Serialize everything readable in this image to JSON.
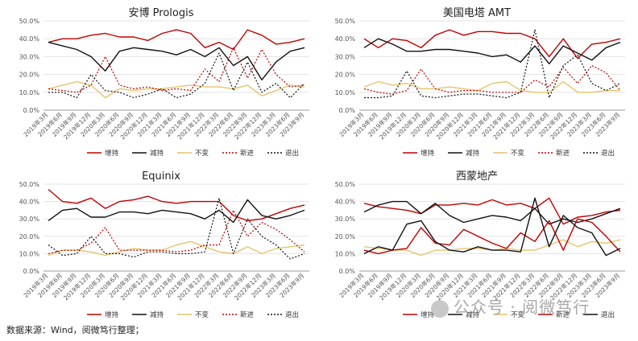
{
  "source_note": "数据来源：Wind，阅微笃行整理；",
  "watermark": "公众号 · 阅微笃行",
  "chart_data": [
    {
      "type": "line",
      "title": "安博 Prologis",
      "ylim": [
        0,
        50
      ],
      "yticks": [
        "0.0%",
        "10.0%",
        "20.0%",
        "30.0%",
        "40.0%",
        "50.0%"
      ],
      "categories": [
        "2019年3月",
        "2019年6月",
        "2019年9月",
        "2019年12月",
        "2020年3月",
        "2020年6月",
        "2020年9月",
        "2020年12月",
        "2021年3月",
        "2021年6月",
        "2021年9月",
        "2021年12月",
        "2022年3月",
        "2022年6月",
        "2022年9月",
        "2022年12月",
        "2023年3月",
        "2023年6月",
        "2023年9月"
      ],
      "tick_labels": [
        "2019年3月",
        "2019年6月",
        "2019年9月",
        "2019年12月",
        "2020年3月",
        "2020年6月",
        "2020年9月",
        "2020年12月",
        "2021年3月",
        "2021年6月",
        "2021年9月",
        "2021年12月",
        "2022年3月",
        "2022年6月",
        "2022年9月",
        "2022年12月",
        "2023年3月",
        "2023年6月",
        "2023年9月"
      ],
      "series": [
        {
          "name": "增持",
          "color": "#c00000",
          "dash": "solid",
          "values": [
            38,
            40,
            40,
            42,
            43,
            41,
            41,
            39,
            43,
            45,
            43,
            35,
            38,
            34,
            45,
            42,
            37,
            38,
            40
          ]
        },
        {
          "name": "减持",
          "color": "#111111",
          "dash": "solid",
          "values": [
            38,
            36,
            34,
            30,
            22,
            33,
            35,
            34,
            33,
            31,
            34,
            30,
            35,
            25,
            30,
            17,
            27,
            33,
            35
          ]
        },
        {
          "name": "不变",
          "color": "#e6c46a",
          "dash": "solid",
          "values": [
            12,
            14,
            16,
            14,
            7,
            12,
            11,
            12,
            12,
            13,
            14,
            13,
            13,
            12,
            14,
            8,
            11,
            14,
            13
          ]
        },
        {
          "name": "新进",
          "color": "#c00000",
          "dash": "dot",
          "values": [
            12,
            11,
            10,
            14,
            30,
            14,
            12,
            13,
            11,
            12,
            11,
            23,
            16,
            35,
            18,
            34,
            20,
            13,
            14
          ]
        },
        {
          "name": "退出",
          "color": "#111111",
          "dash": "dot",
          "values": [
            10,
            10,
            7,
            20,
            11,
            10,
            7,
            9,
            12,
            7,
            9,
            15,
            32,
            11,
            27,
            10,
            15,
            7,
            15
          ]
        }
      ]
    },
    {
      "type": "line",
      "title": "美国电塔 AMT",
      "ylim": [
        0,
        50
      ],
      "yticks": [
        "0.0%",
        "10.0%",
        "20.0%",
        "30.0%",
        "40.0%",
        "50.0%"
      ],
      "categories": [
        "2019年3月",
        "2019年6月",
        "2019年9月",
        "2019年12月",
        "2020年3月",
        "2020年6月",
        "2020年9月",
        "2020年12月",
        "2021年3月",
        "2021年6月",
        "2021年9月",
        "2021年12月",
        "2022年3月",
        "2022年6月",
        "2022年9月",
        "2022年12月",
        "2023年3月",
        "2023年6月",
        "2023年9月"
      ],
      "tick_labels": [
        "2019年3月",
        "2019年6月",
        "2019年9月",
        "2019年12月",
        "2020年3月",
        "2020年6月",
        "2020年9月",
        "2020年12月",
        "2021年3月",
        "2021年6月",
        "2021年9月",
        "2021年12月",
        "2022年3月",
        "2022年6月",
        "2022年9月",
        "2022年12月",
        "2023年3月",
        "2023年6月",
        "2023年9月"
      ],
      "series": [
        {
          "name": "增持",
          "color": "#c00000",
          "dash": "solid",
          "values": [
            40,
            35,
            40,
            39,
            35,
            42,
            45,
            42,
            44,
            44,
            43,
            43,
            40,
            30,
            40,
            29,
            37,
            38,
            40
          ]
        },
        {
          "name": "减持",
          "color": "#111111",
          "dash": "solid",
          "values": [
            35,
            40,
            37,
            33,
            33,
            34,
            34,
            33,
            32,
            30,
            31,
            27,
            36,
            26,
            36,
            32,
            28,
            35,
            38
          ]
        },
        {
          "name": "不变",
          "color": "#e6c46a",
          "dash": "solid",
          "values": [
            13,
            16,
            14,
            15,
            12,
            12,
            13,
            12,
            11,
            15,
            16,
            11,
            10,
            10,
            16,
            10,
            10,
            11,
            11
          ]
        },
        {
          "name": "新进",
          "color": "#c00000",
          "dash": "dot",
          "values": [
            12,
            10,
            9,
            11,
            23,
            12,
            10,
            11,
            11,
            10,
            10,
            10,
            17,
            13,
            24,
            15,
            25,
            21,
            11
          ]
        },
        {
          "name": "退出",
          "color": "#111111",
          "dash": "dot",
          "values": [
            7,
            7,
            8,
            22,
            8,
            7,
            8,
            9,
            9,
            8,
            7,
            10,
            45,
            7,
            25,
            31,
            15,
            11,
            15
          ]
        }
      ]
    },
    {
      "type": "line",
      "title": "Equinix",
      "ylim": [
        0,
        50
      ],
      "yticks": [
        "0.0%",
        "10.0%",
        "20.0%",
        "30.0%",
        "40.0%",
        "50.0%"
      ],
      "categories": [
        "2019年3月",
        "2019年6月",
        "2019年9月",
        "2019年12月",
        "2020年3月",
        "2020年6月",
        "2020年9月",
        "2020年12月",
        "2021年3月",
        "2021年6月",
        "2021年9月",
        "2021年12月",
        "2022年3月",
        "2022年6月",
        "2022年9月",
        "2022年12月",
        "2023年3月",
        "2023年6月",
        "2023年9月"
      ],
      "tick_labels": [
        "2019年3月",
        "2019年6月",
        "2019年9月",
        "2019年12月",
        "2020年3月",
        "2020年6月",
        "2020年9月",
        "2020年12月",
        "2021年3月",
        "2021年6月",
        "2021年9月",
        "2021年12月",
        "2022年3月",
        "2022年6月",
        "2022年9月",
        "2022年12月",
        "2023年3月",
        "2023年6月",
        "2023年9月"
      ],
      "series": [
        {
          "name": "增持",
          "color": "#c00000",
          "dash": "solid",
          "values": [
            47,
            40,
            39,
            42,
            36,
            40,
            41,
            43,
            40,
            39,
            40,
            40,
            40,
            32,
            29,
            30,
            33,
            36,
            38
          ]
        },
        {
          "name": "减持",
          "color": "#111111",
          "dash": "solid",
          "values": [
            29,
            35,
            36,
            31,
            31,
            34,
            34,
            33,
            35,
            34,
            33,
            30,
            35,
            28,
            41,
            32,
            30,
            32,
            35
          ]
        },
        {
          "name": "不变",
          "color": "#e6c46a",
          "dash": "solid",
          "values": [
            9,
            12,
            12,
            11,
            9,
            11,
            13,
            12,
            12,
            15,
            17,
            14,
            11,
            10,
            14,
            10,
            13,
            14,
            15
          ]
        },
        {
          "name": "新进",
          "color": "#c00000",
          "dash": "dot",
          "values": [
            10,
            12,
            12,
            16,
            25,
            12,
            12,
            12,
            12,
            11,
            12,
            15,
            15,
            35,
            20,
            28,
            24,
            18,
            11
          ]
        },
        {
          "name": "退出",
          "color": "#111111",
          "dash": "dot",
          "values": [
            15,
            9,
            10,
            20,
            10,
            10,
            8,
            11,
            11,
            10,
            10,
            11,
            42,
            10,
            30,
            20,
            15,
            7,
            10
          ]
        }
      ]
    },
    {
      "type": "line",
      "title": "西蒙地产",
      "ylim": [
        0,
        50
      ],
      "yticks": [
        "0.0%",
        "10.0%",
        "20.0%",
        "30.0%",
        "40.0%",
        "50.0%"
      ],
      "categories": [
        "2019年3月",
        "2019年6月",
        "2019年9月",
        "2019年12月",
        "2020年3月",
        "2020年6月",
        "2020年9月",
        "2020年12月",
        "2021年3月",
        "2021年6月",
        "2021年9月",
        "2021年12月",
        "2022年3月",
        "2022年6月",
        "2022年9月",
        "2022年12月",
        "2023年3月",
        "2023年6月",
        "2023年9月"
      ],
      "tick_labels": [
        "2019年3月",
        "2019年6月",
        "2019年9月",
        "2019年12月",
        "2020年3月",
        "2020年6月",
        "2020年9月",
        "2020年12月",
        "2021年3月",
        "2021年6月",
        "2021年9月",
        "2021年12月",
        "2022年3月",
        "2022年6月",
        "2022年9月",
        "2022年12月",
        "2023年3月",
        "2023年6月",
        "2023年9月"
      ],
      "series": [
        {
          "name": "增持",
          "color": "#c00000",
          "dash": "solid",
          "values": [
            39,
            37,
            36,
            35,
            33,
            38,
            38,
            39,
            38,
            41,
            38,
            39,
            36,
            42,
            27,
            31,
            32,
            34,
            35
          ]
        },
        {
          "name": "减持",
          "color": "#111111",
          "dash": "solid",
          "values": [
            34,
            38,
            40,
            40,
            33,
            39,
            32,
            28,
            30,
            32,
            31,
            29,
            36,
            27,
            30,
            28,
            30,
            33,
            36
          ]
        },
        {
          "name": "不变",
          "color": "#e6c46a",
          "dash": "solid",
          "values": [
            14,
            13,
            12,
            12,
            9,
            12,
            12,
            13,
            13,
            12,
            13,
            12,
            12,
            15,
            18,
            14,
            17,
            16,
            18
          ]
        },
        {
          "name": "新进",
          "color": "#c00000",
          "dash": "solid",
          "values": [
            12,
            10,
            12,
            13,
            25,
            16,
            15,
            24,
            20,
            16,
            13,
            22,
            17,
            29,
            12,
            30,
            28,
            20,
            11
          ]
        },
        {
          "name": "退出",
          "color": "#111111",
          "dash": "solid",
          "values": [
            10,
            14,
            12,
            27,
            29,
            17,
            12,
            11,
            14,
            12,
            12,
            11,
            42,
            14,
            32,
            25,
            22,
            9,
            13
          ]
        }
      ]
    }
  ]
}
